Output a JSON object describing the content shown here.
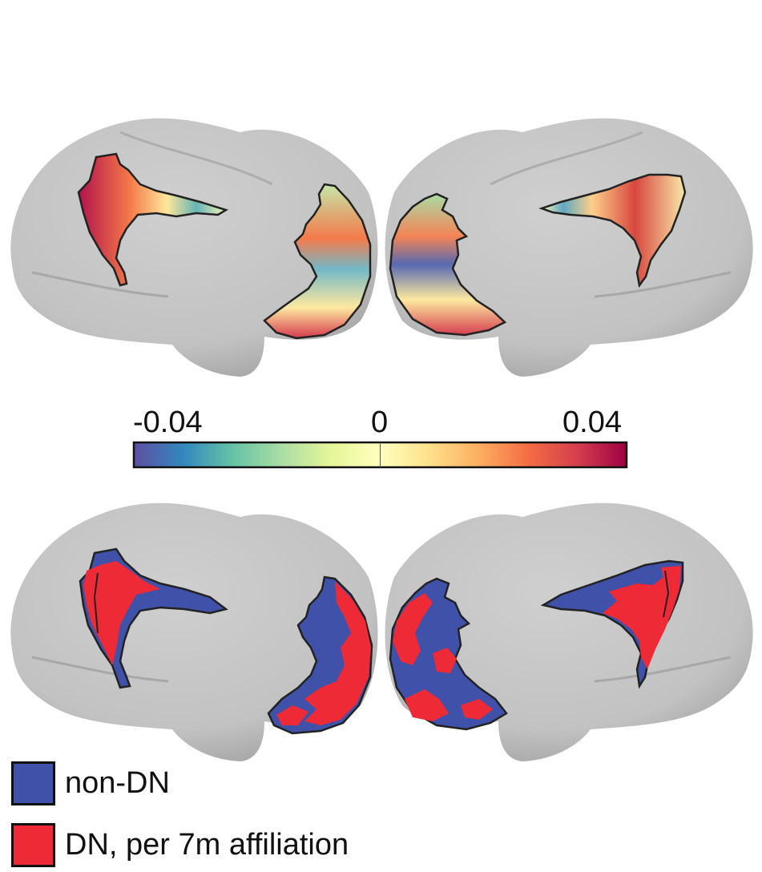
{
  "figure": {
    "colorbar": {
      "min_label": "-0.04",
      "mid_label": "0",
      "max_label": "0.04",
      "min_value": -0.04,
      "mid_value": 0,
      "max_value": 0.04,
      "stops": [
        "#5e4fa2",
        "#3288bd",
        "#66c2a5",
        "#abdda4",
        "#e6f598",
        "#ffffbf",
        "#fee08b",
        "#fdae61",
        "#f46d43",
        "#d53e4f",
        "#9e0142"
      ]
    },
    "legend": [
      {
        "label": "non-DN",
        "color": "#3f51a8"
      },
      {
        "label": "DN, per 7m affiliation",
        "color": "#ee2a36"
      }
    ],
    "brain_color": "#c4c4c4"
  }
}
